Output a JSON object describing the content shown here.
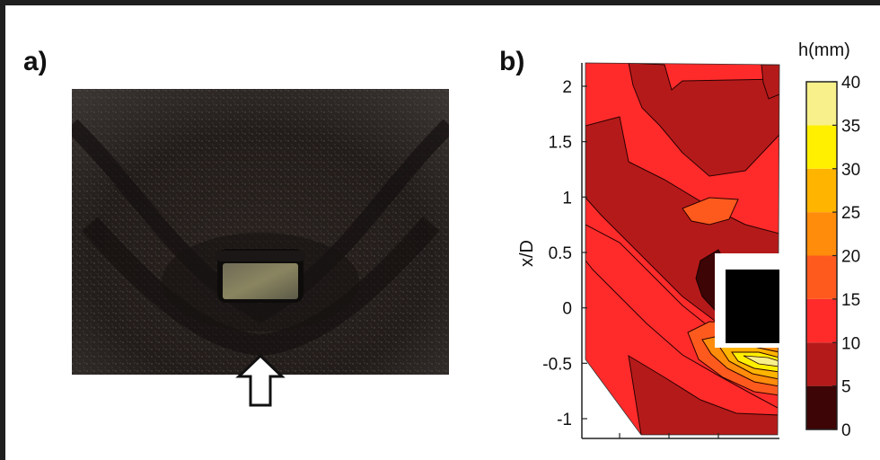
{
  "figure": {
    "panel_a_label": "a)",
    "panel_b_label": "b)"
  },
  "chart_data": {
    "type": "heatmap",
    "title": "",
    "xlabel": "",
    "ylabel": "x/D",
    "ylim": [
      -1.2,
      2.2
    ],
    "y_ticks": [
      "2",
      "1.5",
      "1",
      "0.5",
      "0",
      "-0.5",
      "-1"
    ],
    "y_tick_values": [
      2,
      1.5,
      1,
      0.5,
      0,
      -0.5,
      -1
    ],
    "colorbar": {
      "title": "h(mm)",
      "ticks": [
        "40",
        "35",
        "30",
        "25",
        "20",
        "15",
        "10",
        "5",
        "0"
      ],
      "tick_values": [
        40,
        35,
        30,
        25,
        20,
        15,
        10,
        5,
        0
      ],
      "levels": [
        {
          "min": 0,
          "max": 5,
          "color": "#3d0505"
        },
        {
          "min": 5,
          "max": 10,
          "color": "#b51a1a"
        },
        {
          "min": 10,
          "max": 15,
          "color": "#ff2b2b"
        },
        {
          "min": 15,
          "max": 20,
          "color": "#ff5a1e"
        },
        {
          "min": 20,
          "max": 25,
          "color": "#ff8c0a"
        },
        {
          "min": 25,
          "max": 30,
          "color": "#ffb400"
        },
        {
          "min": 30,
          "max": 35,
          "color": "#fff000"
        },
        {
          "min": 35,
          "max": 40,
          "color": "#f8f08a"
        },
        {
          "min": 40,
          "max": 45,
          "color": "#ffffff"
        }
      ]
    },
    "grid": false
  }
}
